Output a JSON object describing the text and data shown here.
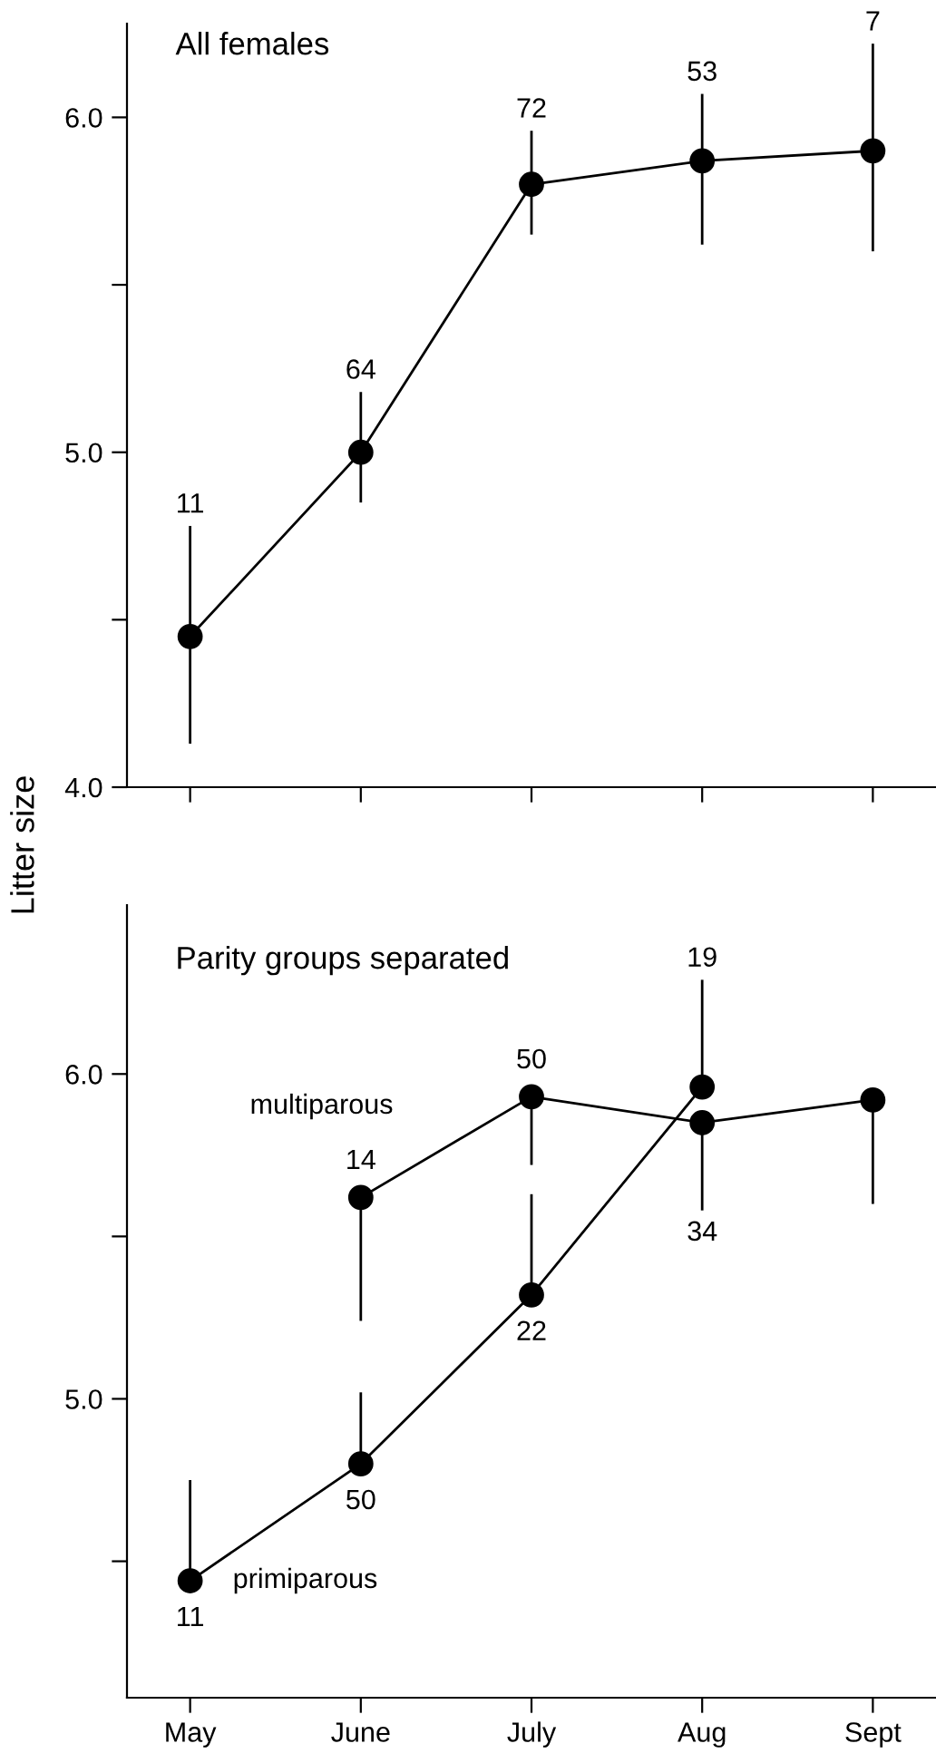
{
  "chart_data": [
    {
      "type": "line",
      "title": "All females",
      "ylabel": "Litter size",
      "categories": [
        "May",
        "June",
        "July",
        "Aug",
        "Sept"
      ],
      "ylim": [
        4.0,
        6.28
      ],
      "yticks": [
        {
          "value": 4.0,
          "label": "4.0"
        },
        {
          "value": 4.5,
          "label": null
        },
        {
          "value": 5.0,
          "label": "5.0"
        },
        {
          "value": 5.5,
          "label": null
        },
        {
          "value": 6.0,
          "label": "6.0"
        }
      ],
      "tick_labels": "y",
      "marker": "circle",
      "line_style": "solid",
      "series": [
        {
          "color": "#000000",
          "values": [
            4.45,
            5.0,
            5.8,
            5.87,
            5.9
          ],
          "errors": [
            [
              4.13,
              4.78
            ],
            [
              4.85,
              5.18
            ],
            [
              5.65,
              5.96
            ],
            [
              5.62,
              6.07
            ],
            [
              5.6,
              6.22
            ]
          ]
        }
      ],
      "annotations": [
        {
          "text": "11",
          "x": "May",
          "y": 4.78
        },
        {
          "text": "64",
          "x": "June",
          "y": 5.18
        },
        {
          "text": "72",
          "x": "July",
          "y": 5.96
        },
        {
          "text": "53",
          "x": "Aug",
          "y": 6.07
        },
        {
          "text": "7",
          "x": "Sept",
          "y": 6.22
        }
      ]
    },
    {
      "type": "line",
      "title": "Parity groups separated",
      "categories": [
        "May",
        "June",
        "July",
        "Aug",
        "Sept"
      ],
      "ylim": [
        4.08,
        6.52
      ],
      "yticks": [
        {
          "value": 4.5,
          "label": null
        },
        {
          "value": 5.0,
          "label": "5.0"
        },
        {
          "value": 5.5,
          "label": null
        },
        {
          "value": 6.0,
          "label": "6.0"
        }
      ],
      "marker": "circle",
      "line_style": "solid",
      "series": [
        {
          "name": "multiparous",
          "color": "#000000",
          "values": [
            null,
            5.62,
            5.93,
            5.85,
            5.92
          ],
          "errors": [
            null,
            [
              5.24,
              5.62
            ],
            [
              5.72,
              5.93
            ],
            [
              5.58,
              5.85
            ],
            [
              5.6,
              5.92
            ]
          ]
        },
        {
          "name": "primiparous",
          "color": "#000000",
          "values": [
            4.44,
            4.8,
            5.32,
            5.96,
            null
          ],
          "errors": [
            [
              4.44,
              4.75
            ],
            [
              4.8,
              5.02
            ],
            [
              5.32,
              5.63
            ],
            [
              5.96,
              6.29
            ],
            null
          ]
        }
      ],
      "annotations": [
        {
          "text": "14",
          "x": "June",
          "y": 5.62
        },
        {
          "text": "50",
          "x": "July",
          "y": 5.93
        },
        {
          "text": "34",
          "x": "Aug",
          "y": 5.58
        },
        {
          "text": "11",
          "x": "May",
          "y": 4.44
        },
        {
          "text": "50",
          "x": "June",
          "y": 4.8
        },
        {
          "text": "22",
          "x": "July",
          "y": 5.32
        },
        {
          "text": "19",
          "x": "Aug",
          "y": 6.29
        }
      ]
    }
  ]
}
